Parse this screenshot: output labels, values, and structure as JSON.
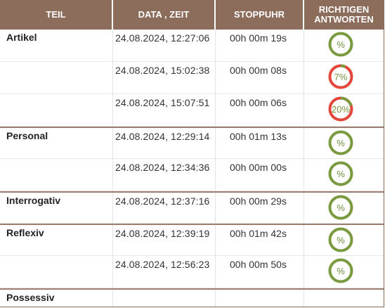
{
  "table": {
    "headers": {
      "teil": "TEIL",
      "datum": "DATA , ZEIT",
      "stoppuhr": "STOPPUHR",
      "richtigen_1": "RICHTIGEN",
      "richtigen_2": "ANTWORTEN"
    },
    "rows": [
      {
        "teil": "Artikel",
        "datum": "24.08.2024, 12:27:06",
        "stoppuhr": "00h 00m 19s",
        "ergebnis": "%",
        "status": "green",
        "fraction": 1.0
      },
      {
        "teil": "",
        "datum": "24.08.2024, 15:02:38",
        "stoppuhr": "00h 00m 08s",
        "ergebnis": "7%",
        "status": "red",
        "fraction": 0.07
      },
      {
        "teil": "",
        "datum": "24.08.2024, 15:07:51",
        "stoppuhr": "00h 00m 06s",
        "ergebnis": "20%",
        "status": "red",
        "fraction": 0.2
      },
      {
        "teil": "Personal",
        "datum": "24.08.2024, 12:29:14",
        "stoppuhr": "00h 01m 13s",
        "ergebnis": "%",
        "status": "green",
        "fraction": 1.0
      },
      {
        "teil": "",
        "datum": "24.08.2024, 12:34:36",
        "stoppuhr": "00h 00m 00s",
        "ergebnis": "%",
        "status": "green",
        "fraction": 1.0
      },
      {
        "teil": "Interrogativ",
        "datum": "24.08.2024, 12:37:16",
        "stoppuhr": "00h 00m 29s",
        "ergebnis": "%",
        "status": "green",
        "fraction": 1.0
      },
      {
        "teil": "Reflexiv",
        "datum": "24.08.2024, 12:39:19",
        "stoppuhr": "00h 01m 42s",
        "ergebnis": "%",
        "status": "green",
        "fraction": 1.0
      },
      {
        "teil": "",
        "datum": "24.08.2024, 12:56:23",
        "stoppuhr": "00h 00m 50s",
        "ergebnis": "%",
        "status": "green",
        "fraction": 1.0
      },
      {
        "teil": "Possessiv",
        "datum": "",
        "stoppuhr": "",
        "ergebnis": "",
        "status": "none",
        "fraction": 0
      }
    ]
  },
  "colors": {
    "header_bg": "#8c6c5b",
    "ring_green": "#7a9a3f",
    "ring_red": "#e2473a",
    "text_green": "#6f8e3e"
  }
}
